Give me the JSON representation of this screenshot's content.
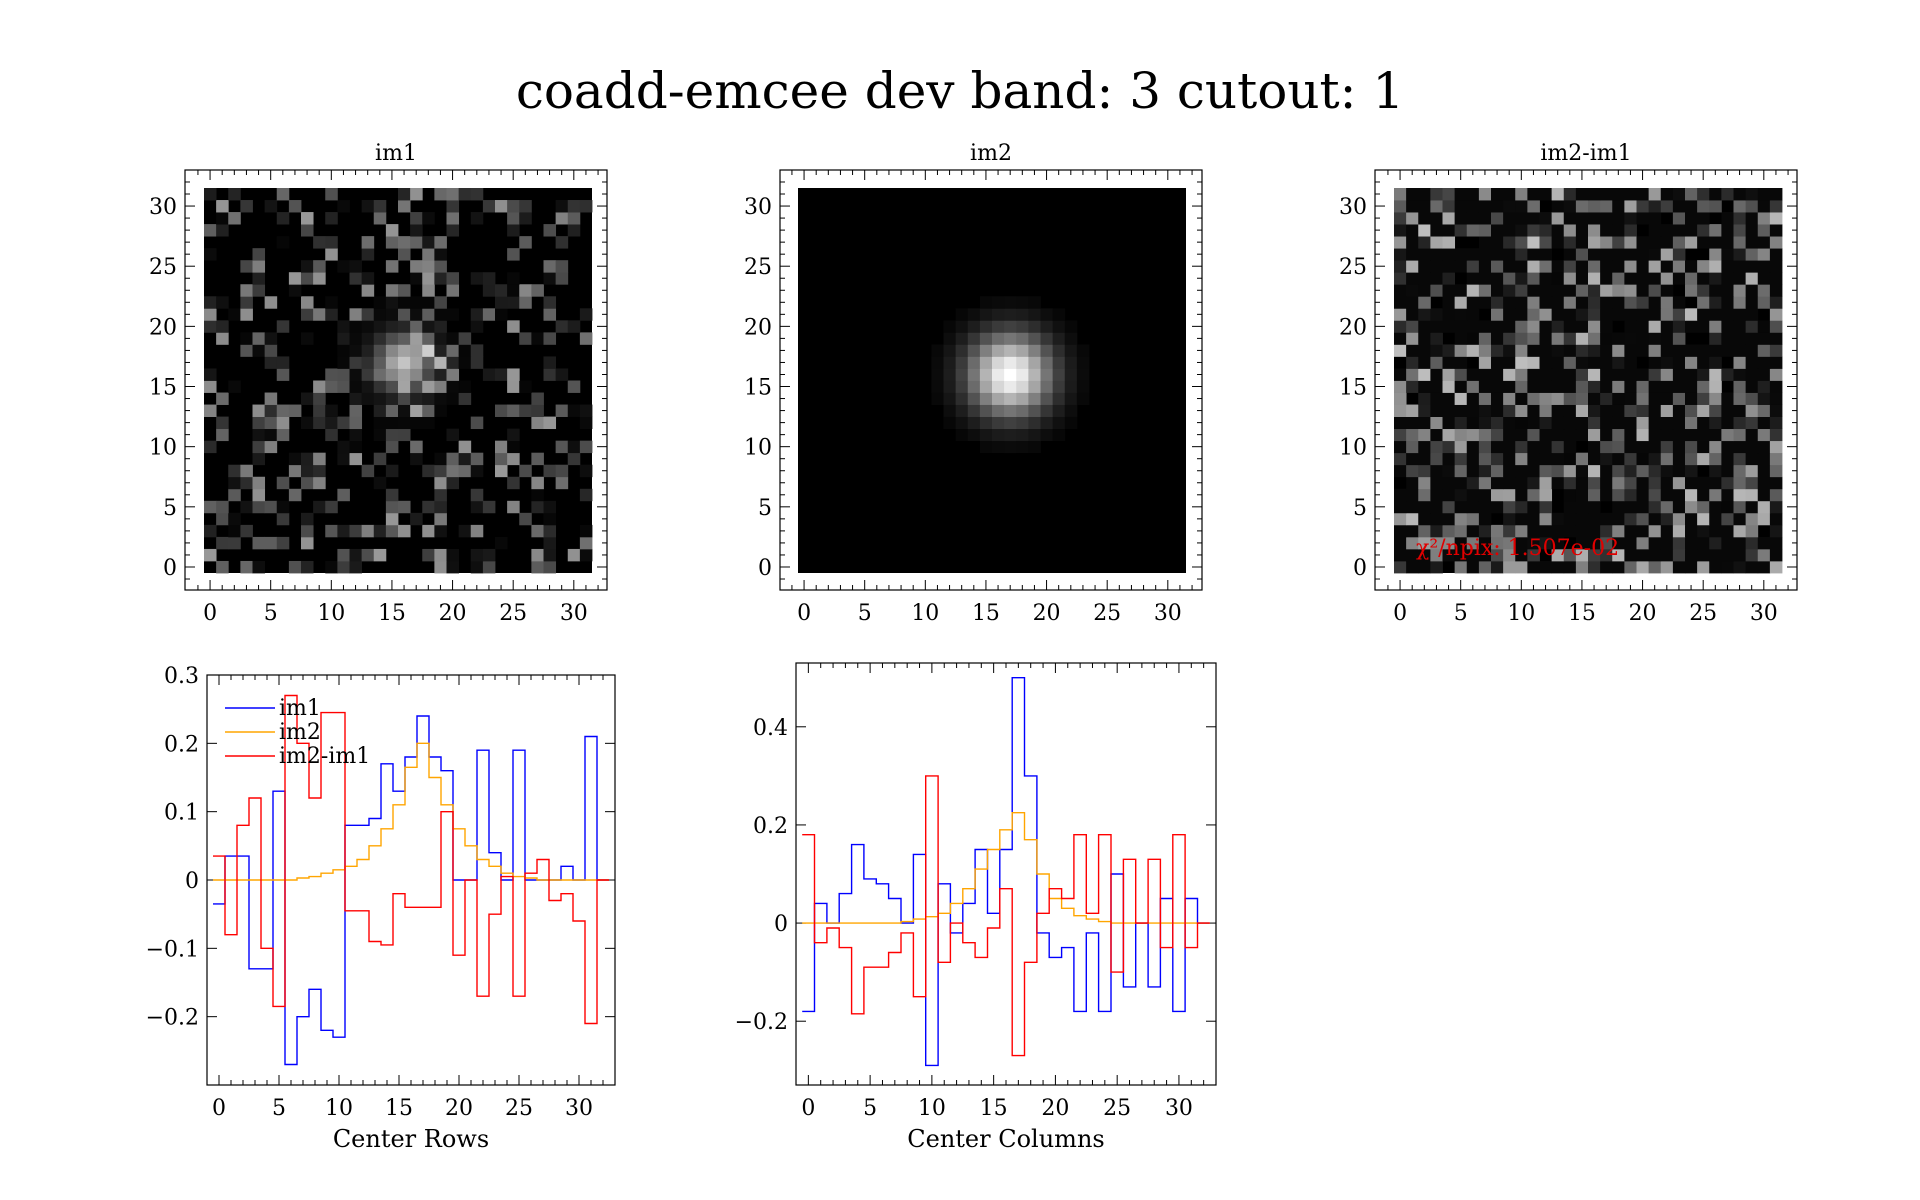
{
  "title": "coadd-emcee dev band: 3 cutout: 1",
  "images": [
    {
      "id": "im1",
      "title": "im1",
      "seed": 11,
      "kind": "noise_source",
      "peak": [
        16,
        17
      ]
    },
    {
      "id": "im2",
      "title": "im2",
      "seed": 0,
      "kind": "model",
      "peak": [
        17,
        16
      ]
    },
    {
      "id": "im2-im1",
      "title": "im2-im1",
      "seed": 27,
      "kind": "residual",
      "annotation": "χ²/npix: 1.507e-02"
    }
  ],
  "image_axes": {
    "xticks": [
      0,
      5,
      10,
      15,
      20,
      25,
      30
    ],
    "yticks": [
      0,
      5,
      10,
      15,
      20,
      25,
      30
    ],
    "range": [
      -1,
      32
    ]
  },
  "colors": {
    "im1": "#0000ff",
    "im2": "#ffa500",
    "im2-im1": "#ff0000",
    "annotation": "#ff0000"
  },
  "chart_data": [
    {
      "type": "line",
      "step": true,
      "xlabel": "Center Rows",
      "ylabel": "",
      "xlim": [
        -1,
        33
      ],
      "ylim": [
        -0.3,
        0.3
      ],
      "xticks": [
        0,
        5,
        10,
        15,
        20,
        25,
        30
      ],
      "yticks": [
        -0.2,
        -0.1,
        0,
        0.1,
        0.2,
        0.3
      ],
      "ytick_labels": [
        "−0.2",
        "−0.1",
        "0",
        "0.1",
        "0.2",
        "0.3"
      ],
      "legend": "top-left",
      "x": [
        0,
        1,
        2,
        3,
        4,
        5,
        6,
        7,
        8,
        9,
        10,
        11,
        12,
        13,
        14,
        15,
        16,
        17,
        18,
        19,
        20,
        21,
        22,
        23,
        24,
        25,
        26,
        27,
        28,
        29,
        30,
        31,
        32
      ],
      "series": [
        {
          "name": "im1",
          "values": [
            -0.035,
            0.035,
            0.035,
            -0.13,
            -0.13,
            0.13,
            -0.27,
            -0.2,
            -0.16,
            -0.22,
            -0.23,
            0.08,
            0.08,
            0.09,
            0.17,
            0.13,
            0.18,
            0.24,
            0.18,
            0.16,
            0.0,
            0.0,
            0.19,
            0.04,
            0.0,
            0.19,
            0.0,
            0.0,
            0.0,
            0.02,
            0.0,
            0.21,
            0.0
          ]
        },
        {
          "name": "im2",
          "values": [
            0.0,
            0.0,
            0.0,
            0.0,
            0.0,
            0.0,
            0.0,
            0.003,
            0.005,
            0.01,
            0.015,
            0.02,
            0.03,
            0.05,
            0.075,
            0.11,
            0.165,
            0.2,
            0.15,
            0.11,
            0.075,
            0.05,
            0.03,
            0.02,
            0.01,
            0.005,
            0.003,
            0.0,
            0.0,
            0.0,
            0.0,
            0.0,
            0.0
          ]
        },
        {
          "name": "im2-im1",
          "values": [
            0.035,
            -0.08,
            0.08,
            0.12,
            -0.1,
            -0.185,
            0.27,
            0.2,
            0.12,
            0.245,
            0.245,
            -0.045,
            -0.045,
            -0.09,
            -0.095,
            -0.02,
            -0.04,
            -0.04,
            -0.04,
            0.1,
            -0.11,
            -0.0,
            -0.17,
            -0.05,
            0.005,
            -0.17,
            0.01,
            0.03,
            -0.03,
            -0.02,
            -0.06,
            -0.21,
            0.0
          ]
        }
      ]
    },
    {
      "type": "line",
      "step": true,
      "xlabel": "Center Columns",
      "ylabel": "",
      "xlim": [
        -1,
        33
      ],
      "ylim": [
        -0.33,
        0.53
      ],
      "xticks": [
        0,
        5,
        10,
        15,
        20,
        25,
        30
      ],
      "yticks": [
        -0.2,
        0,
        0.2,
        0.4
      ],
      "ytick_labels": [
        "−0.2",
        "0",
        "0.2",
        "0.4"
      ],
      "x": [
        0,
        1,
        2,
        3,
        4,
        5,
        6,
        7,
        8,
        9,
        10,
        11,
        12,
        13,
        14,
        15,
        16,
        17,
        18,
        19,
        20,
        21,
        22,
        23,
        24,
        25,
        26,
        27,
        28,
        29,
        30,
        31,
        32
      ],
      "series": [
        {
          "name": "im1",
          "values": [
            -0.18,
            0.04,
            0.0,
            0.06,
            0.16,
            0.09,
            0.08,
            0.05,
            0.0,
            0.14,
            -0.29,
            0.08,
            -0.02,
            0.04,
            0.15,
            0.02,
            0.15,
            0.5,
            0.3,
            -0.02,
            -0.07,
            -0.05,
            -0.18,
            -0.02,
            -0.18,
            0.1,
            -0.13,
            0.0,
            -0.13,
            0.05,
            -0.18,
            0.05,
            0.0
          ]
        },
        {
          "name": "im2",
          "values": [
            0.0,
            0.0,
            0.0,
            0.0,
            0.0,
            0.0,
            0.0,
            0.0,
            0.003,
            0.008,
            0.013,
            0.02,
            0.04,
            0.07,
            0.11,
            0.15,
            0.19,
            0.225,
            0.17,
            0.1,
            0.05,
            0.03,
            0.015,
            0.008,
            0.003,
            0.0,
            0.0,
            0.0,
            0.0,
            0.0,
            0.0,
            0.0,
            0.0
          ]
        },
        {
          "name": "im2-im1",
          "values": [
            0.18,
            -0.04,
            -0.01,
            -0.05,
            -0.185,
            -0.09,
            -0.09,
            -0.06,
            -0.02,
            -0.15,
            0.3,
            -0.08,
            0.0,
            -0.04,
            -0.07,
            -0.01,
            0.07,
            -0.27,
            -0.08,
            0.02,
            0.07,
            0.05,
            0.18,
            0.02,
            0.18,
            -0.1,
            0.13,
            0.0,
            0.13,
            -0.05,
            0.18,
            -0.05,
            0.0
          ]
        }
      ]
    }
  ]
}
